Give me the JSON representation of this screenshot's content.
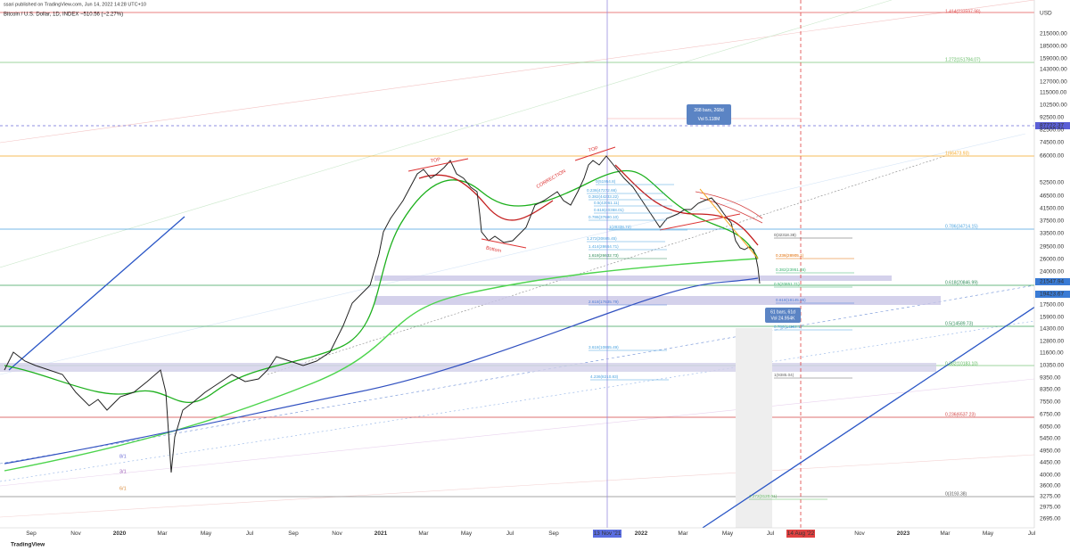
{
  "header": {
    "published": "ssari published on TradingView.com, Jun 14, 2022 14:28 UTC+10",
    "symbol": "Bitcoin / U.S. Dollar, 1D, INDEX  −510.56 (−2.27%)"
  },
  "price_axis": {
    "unit": "USD",
    "labels": [
      "215000.00",
      "185000.00",
      "159000.00",
      "143000.00",
      "127000.00",
      "115000.00",
      "102500.00",
      "92500.00",
      "87722.37",
      "82500.00",
      "74500.00",
      "66000.00",
      "52500.00",
      "46500.00",
      "41500.00",
      "37500.00",
      "33500.00",
      "29500.00",
      "26000.00",
      "24000.00",
      "21547.94",
      "19423.67",
      "17500.00",
      "15900.00",
      "14300.00",
      "12800.00",
      "11600.00",
      "10350.00",
      "9350.00",
      "8350.00",
      "7550.00",
      "6750.00",
      "6050.00",
      "5450.00",
      "4950.00",
      "4450.00",
      "4000.00",
      "3600.00",
      "3275.00",
      "2975.00",
      "2695.00"
    ]
  },
  "time_axis": {
    "labels": [
      "Sep",
      "Nov",
      "2020",
      "Mar",
      "May",
      "Jul",
      "Sep",
      "Nov",
      "2021",
      "Mar",
      "May",
      "Jul",
      "Sep",
      "13 Nov '21",
      "2022",
      "Mar",
      "May",
      "Jul",
      "14 Aug '22",
      "Nov",
      "2023",
      "Mar",
      "May",
      "Jul"
    ]
  },
  "fib_levels": [
    "1.414(233597.98)",
    "1.272(151784.07)",
    "1(66473.93)",
    "0.786(34714.15)",
    "0.618(20846.99)",
    "0.5(14589.73)",
    "0.382(10183.10)",
    "0.236(6537.23)",
    "0(3193.38)"
  ],
  "inner_fibs": [
    "0.236(28905.1)",
    "0.382(23951.46)",
    "0.5(20851.71)",
    "0.618(18145.86)",
    "0.786(14282.1)",
    "1(9385.04)",
    "0(32318.38)",
    "1(28338.72)",
    "1.272(30665.45)",
    "1.414(28664.71)",
    "1.618(26632.73)",
    "2.618(17635.79)",
    "3.618(10865.49)",
    "4.236(8210.83)",
    "0.786(37690.10)",
    "0.618(40368.01)",
    "0.5(42061.11)",
    "0.382(44233.22)",
    "0.236(47272.66)",
    "0(51954.8)",
    "1.272(3120.01)"
  ],
  "annotations": [
    "TOP",
    "TOP",
    "CORRECTION",
    "Bottom",
    "8/1",
    "3/1",
    "6/1"
  ],
  "measures": [
    {
      "bars": "268 bars, 268d",
      "vol": "Vol 5.118M"
    },
    {
      "bars": "61 bars, 61d",
      "vol": "Vol 24.954K"
    }
  ],
  "footer": "TradingView"
}
